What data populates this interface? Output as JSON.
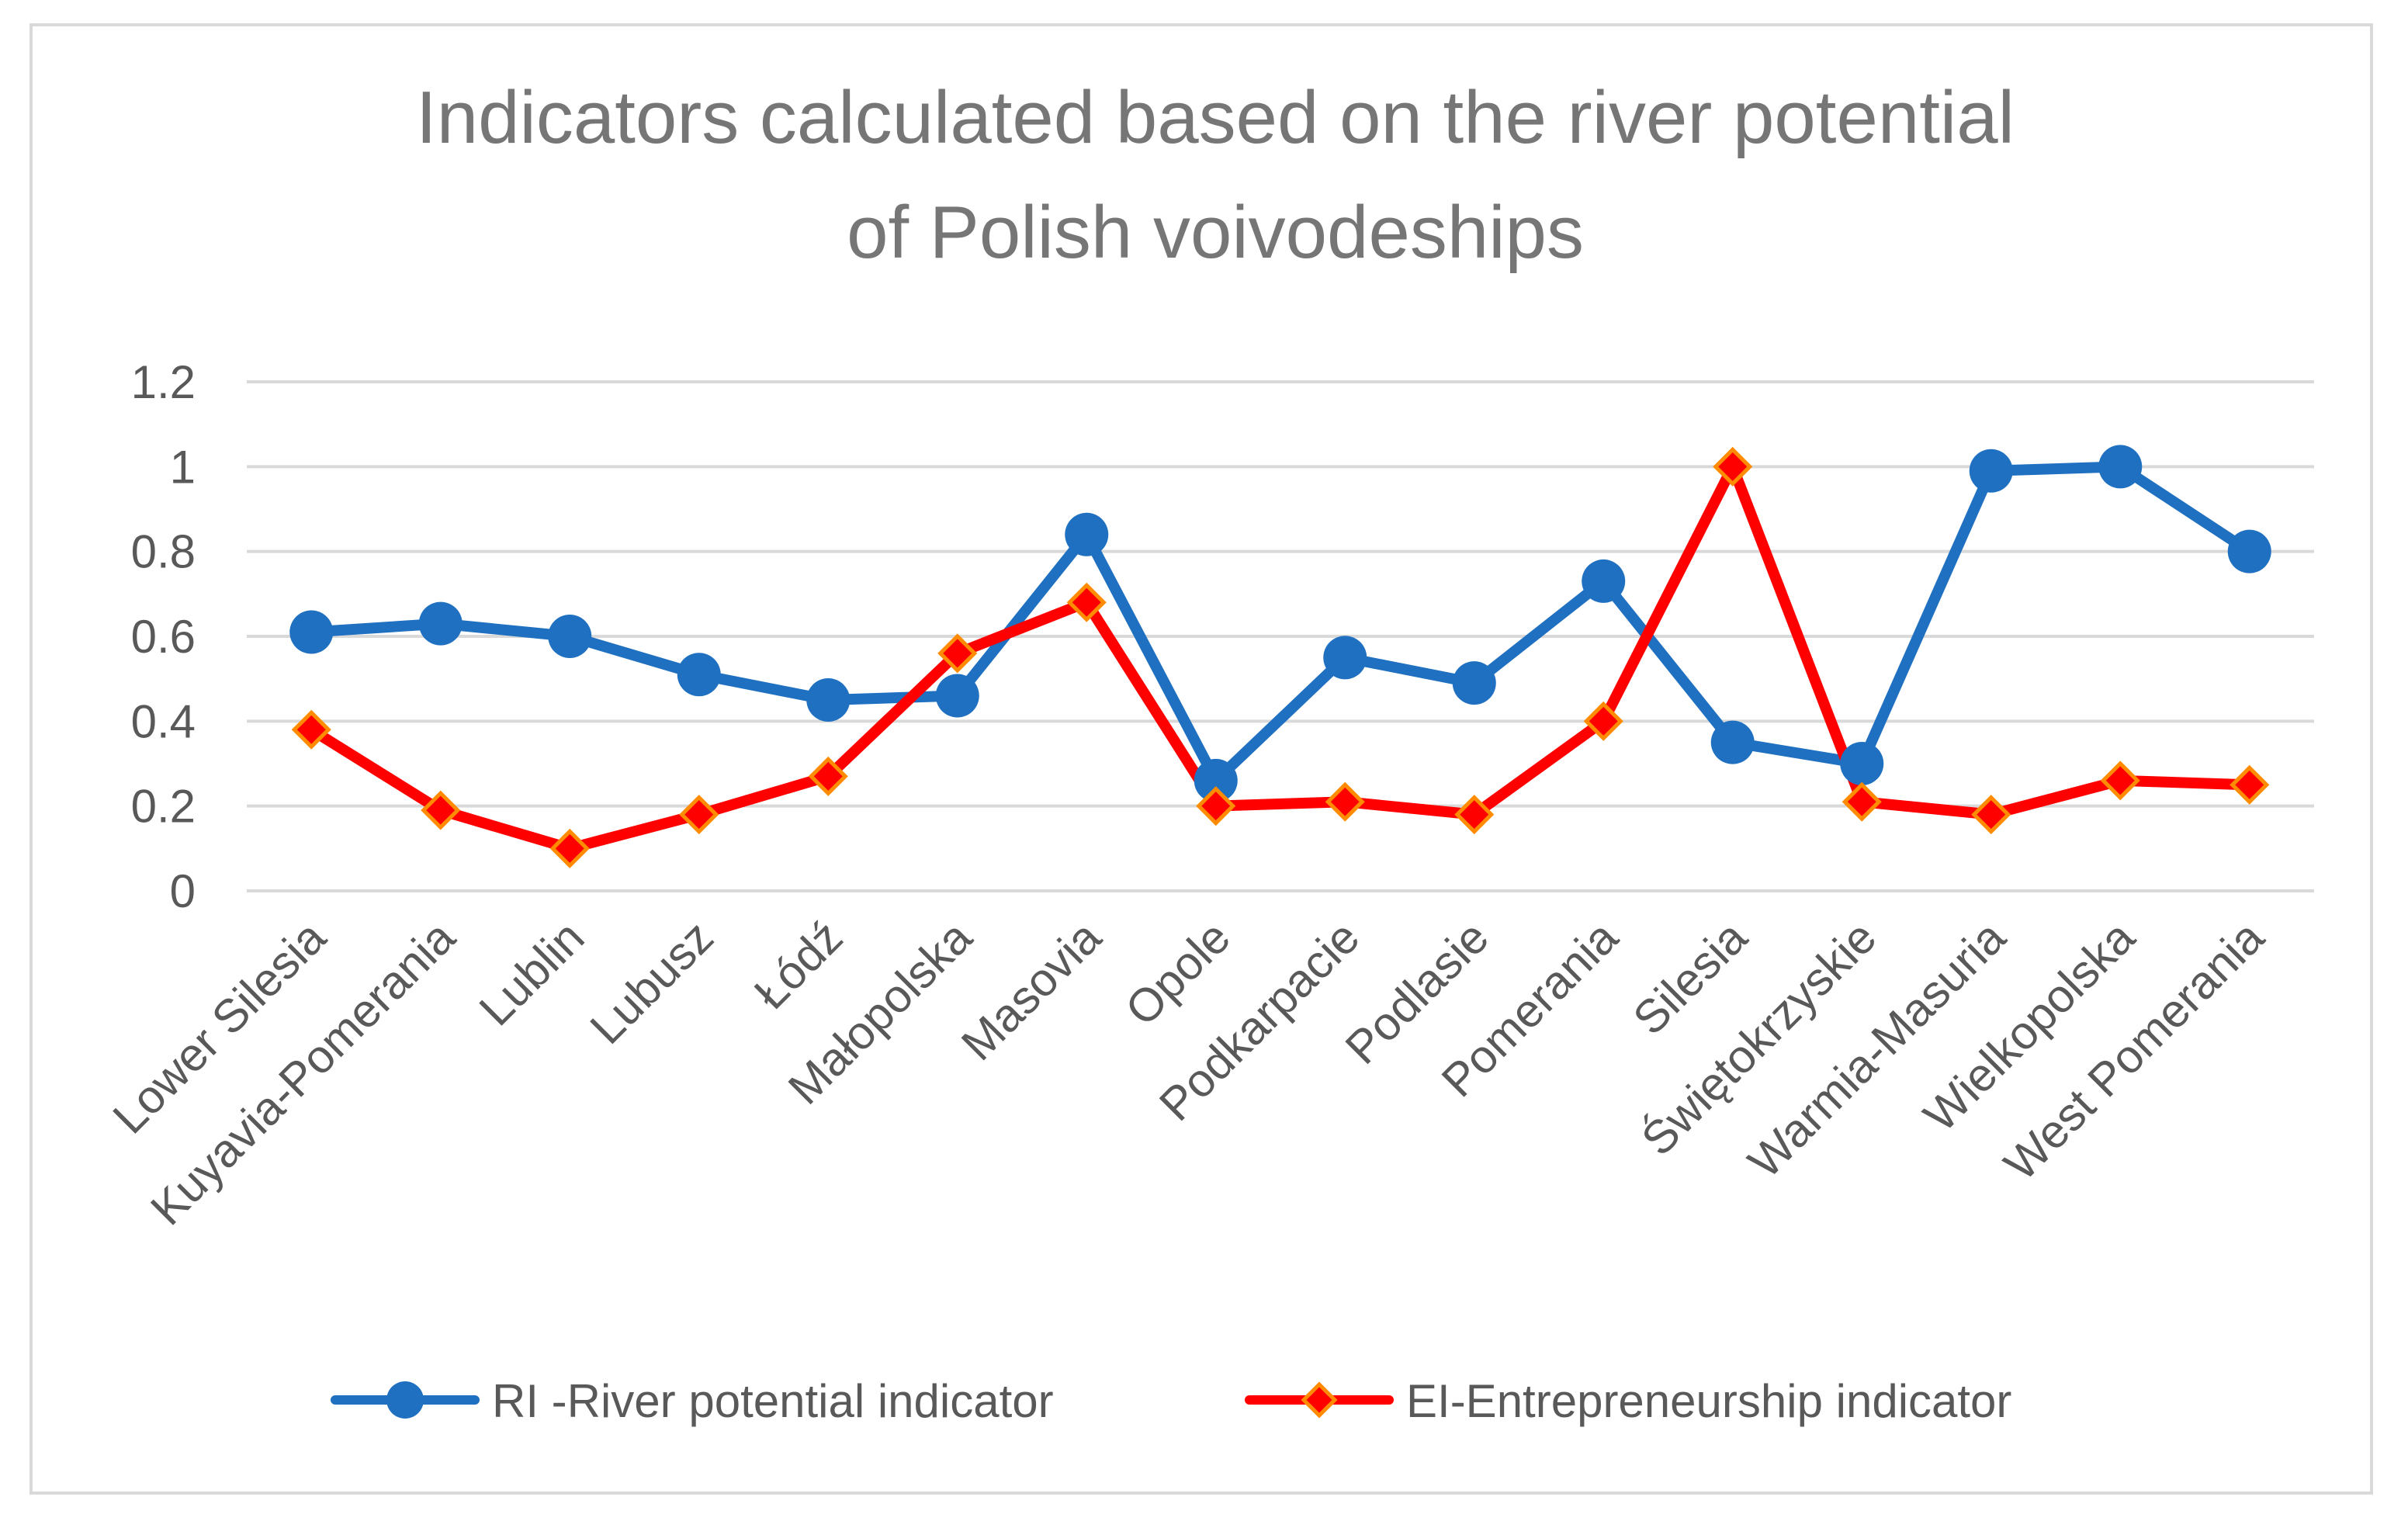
{
  "chart_data": {
    "type": "line",
    "title": "Indicators calculated based on the river potential of Polish voivodeships",
    "title_lines": [
      "Indicators calculated based on the river potential",
      "of Polish voivodeships"
    ],
    "categories": [
      "Lower Silesia",
      "Kuyavia-Pomerania",
      "Lublin",
      "Lubusz",
      "Łódź",
      "Małopolska",
      "Masovia",
      "Opole",
      "Podkarpacie",
      "Podlasie",
      "Pomerania",
      "Silesia",
      "Świętokrzyskie",
      "Warmia-Masuria",
      "Wielkopolska",
      "West Pomerania"
    ],
    "series": [
      {
        "name": "RI -River potential indicator",
        "color": "#1f70c1",
        "marker": "circle",
        "values": [
          0.61,
          0.63,
          0.6,
          0.51,
          0.45,
          0.46,
          0.84,
          0.26,
          0.55,
          0.49,
          0.73,
          0.35,
          0.3,
          0.99,
          1.0,
          0.8
        ]
      },
      {
        "name": "EI-Entrepreneurship indicator",
        "color": "#ff0000",
        "marker": "diamond",
        "marker_edge": "#ff8c00",
        "values": [
          0.38,
          0.19,
          0.1,
          0.18,
          0.27,
          0.56,
          0.68,
          0.2,
          0.21,
          0.18,
          0.4,
          1.0,
          0.21,
          0.18,
          0.26,
          0.25
        ]
      }
    ],
    "yticks": [
      "0",
      "0.2",
      "0.4",
      "0.6",
      "0.8",
      "1",
      "1.2"
    ],
    "ylim": [
      0,
      1.2
    ],
    "xlabel": "",
    "ylabel": "",
    "grid": true,
    "legend_position": "bottom"
  }
}
